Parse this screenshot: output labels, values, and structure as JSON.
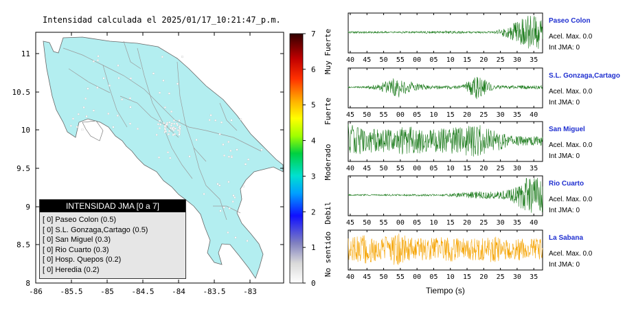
{
  "map": {
    "title": "Intensidad calculada el 2025/01/17_10:21:47_p.m.",
    "x_ticks": [
      "-86",
      "-85.5",
      "-85",
      "-84.5",
      "-84",
      "-83.5",
      "-83"
    ],
    "y_ticks": [
      "8",
      "8.5",
      "9",
      "9.5",
      "10",
      "10.5",
      "11"
    ],
    "land_color": "#b3eef0",
    "border_color": "#888888"
  },
  "colorbar": {
    "ticks": [
      "0",
      "1",
      "2",
      "3",
      "4",
      "5",
      "6",
      "7"
    ],
    "category_labels": [
      "No sentido",
      "Debil",
      "Moderado",
      "Fuerte",
      "Muy Fuerte"
    ]
  },
  "legend": {
    "title": "INTENSIDAD JMA [0 a 7]",
    "items": [
      "[ 0]  Paseo Colon (0.5)",
      "[ 0]  S.L. Gonzaga,Cartago (0.5)",
      "[ 0]  San Miguel (0.3)",
      "[ 0]  Rio Cuarto (0.3)",
      "[ 0]  Hosp. Quepos (0.2)",
      "[ 0]  Heredia (0.2)"
    ]
  },
  "stations": [
    {
      "name": "Paseo Colon",
      "acel": "Acel. Max. 0.0",
      "int": "Int JMA: 0",
      "color": "#1a7a1a",
      "ticks": [
        "40",
        "45",
        "50",
        "55",
        "00",
        "05",
        "10",
        "15",
        "20",
        "25",
        "30",
        "35"
      ],
      "amp": [
        0.05,
        0.05,
        0.05,
        0.05,
        0.05,
        0.06,
        0.08,
        0.06,
        0.05,
        0.05,
        0.4,
        0.9
      ]
    },
    {
      "name": "S.L. Gonzaga,Cartago",
      "acel": "Acel. Max. 0.0",
      "int": "Int JMA: 0",
      "color": "#1a7a1a",
      "ticks": [
        "45",
        "50",
        "55",
        "00",
        "05",
        "10",
        "15",
        "20",
        "25",
        "30",
        "35",
        "40"
      ],
      "amp": [
        0.03,
        0.05,
        0.2,
        0.6,
        0.25,
        0.1,
        0.1,
        0.1,
        0.7,
        0.1,
        0.1,
        0.1
      ]
    },
    {
      "name": "San Miguel",
      "acel": "Acel. Max. 0.0",
      "int": "Int JMA: 0",
      "color": "#1a7a1a",
      "ticks": [
        "40",
        "45",
        "50",
        "55",
        "00",
        "05",
        "10",
        "15",
        "20",
        "25",
        "30",
        "35"
      ],
      "amp": [
        0.9,
        0.7,
        0.6,
        0.7,
        0.8,
        0.6,
        0.7,
        0.8,
        0.9,
        0.6,
        0.3,
        0.25
      ]
    },
    {
      "name": "Rio Cuarto",
      "acel": "Acel. Max. 0.0",
      "int": "Int JMA: 0",
      "color": "#1a7a1a",
      "ticks": [
        "45",
        "50",
        "55",
        "00",
        "05",
        "10",
        "15",
        "20",
        "25",
        "30",
        "35",
        "40"
      ],
      "amp": [
        0.04,
        0.04,
        0.04,
        0.05,
        0.05,
        0.05,
        0.05,
        0.15,
        0.2,
        0.2,
        0.3,
        0.95
      ]
    },
    {
      "name": "La Sabana",
      "acel": "Acel. Max. 0.0",
      "int": "Int JMA: 0",
      "color": "#f5a300",
      "ticks": [
        "40",
        "45",
        "50",
        "55",
        "00",
        "05",
        "10",
        "15",
        "20",
        "25",
        "30",
        "35"
      ],
      "amp": [
        0.6,
        0.8,
        0.6,
        0.9,
        0.6,
        0.6,
        0.7,
        0.6,
        0.6,
        0.7,
        0.6,
        0.6
      ]
    }
  ],
  "time_axis_label": "Tiempo (s)",
  "chart_data": [
    {
      "type": "heatmap",
      "title": "Intensidad calculada el 2025/01/17_10:21:47_p.m.",
      "xlim": [
        -86,
        -82.6
      ],
      "ylim": [
        8,
        11.3
      ],
      "colorbar_range": [
        0,
        7
      ]
    },
    {
      "type": "line",
      "series": [
        {
          "name": "Paseo Colon"
        },
        {
          "name": "S.L. Gonzaga,Cartago"
        },
        {
          "name": "San Miguel"
        },
        {
          "name": "Rio Cuarto"
        },
        {
          "name": "La Sabana"
        }
      ],
      "xlabel": "Tiempo (s)"
    }
  ]
}
